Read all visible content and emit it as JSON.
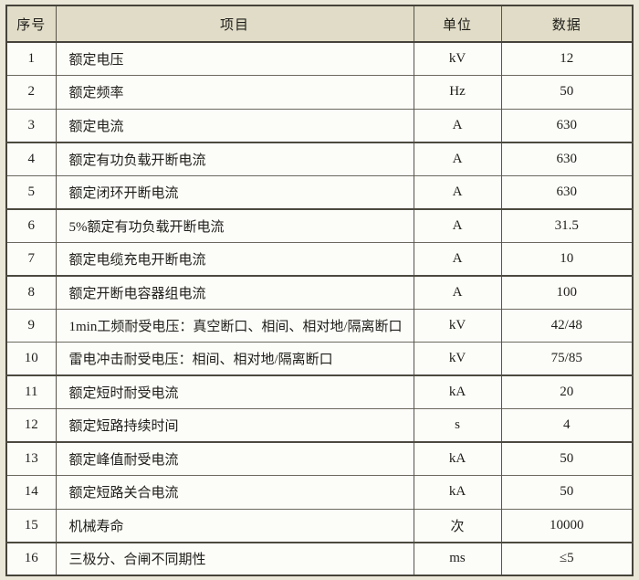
{
  "table": {
    "headers": {
      "no": "序号",
      "item": "项目",
      "unit": "单位",
      "data": "数据"
    },
    "rows": [
      {
        "no": "1",
        "item": "额定电压",
        "unit": "kV",
        "value": "12"
      },
      {
        "no": "2",
        "item": "额定频率",
        "unit": "Hz",
        "value": "50"
      },
      {
        "no": "3",
        "item": "额定电流",
        "unit": "A",
        "value": "630"
      },
      {
        "no": "4",
        "item": "额定有功负载开断电流",
        "unit": "A",
        "value": "630"
      },
      {
        "no": "5",
        "item": "额定闭环开断电流",
        "unit": "A",
        "value": "630"
      },
      {
        "no": "6",
        "item": "5%额定有功负载开断电流",
        "unit": "A",
        "value": "31.5"
      },
      {
        "no": "7",
        "item": "额定电缆充电开断电流",
        "unit": "A",
        "value": "10"
      },
      {
        "no": "8",
        "item": "额定开断电容器组电流",
        "unit": "A",
        "value": "100"
      },
      {
        "no": "9",
        "item": "1min工频耐受电压：真空断口、相间、相对地/隔离断口",
        "unit": "kV",
        "value": "42/48"
      },
      {
        "no": "10",
        "item": "雷电冲击耐受电压：相间、相对地/隔离断口",
        "unit": "kV",
        "value": "75/85"
      },
      {
        "no": "11",
        "item": "额定短时耐受电流",
        "unit": "kA",
        "value": "20"
      },
      {
        "no": "12",
        "item": "额定短路持续时间",
        "unit": "s",
        "value": "4"
      },
      {
        "no": "13",
        "item": "额定峰值耐受电流",
        "unit": "kA",
        "value": "50"
      },
      {
        "no": "14",
        "item": "额定短路关合电流",
        "unit": "kA",
        "value": "50"
      },
      {
        "no": "15",
        "item": "机械寿命",
        "unit": "次",
        "value": "10000"
      },
      {
        "no": "16",
        "item": "三极分、合闸不同期性",
        "unit": "ms",
        "value": "≤5"
      }
    ]
  },
  "colors": {
    "page_background": "#eae6d8",
    "header_background": "#e0dcc7",
    "cell_background": "#fcfcf9",
    "border_dark": "#45433a",
    "border_light": "#6b695f"
  }
}
